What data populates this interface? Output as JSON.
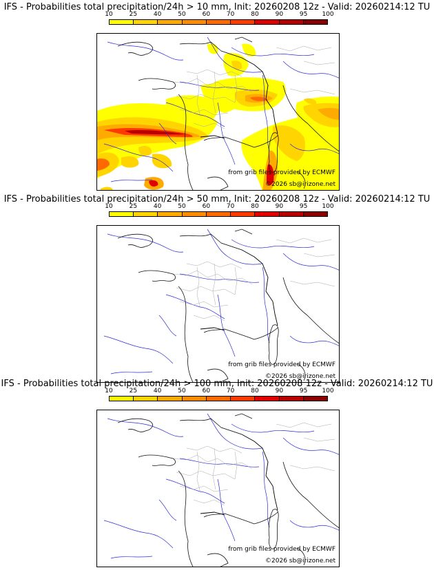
{
  "panels": [
    {
      "title": "IFS - Probabilities total precipitation/24h > 10 mm, Init: 20260208 12z - Valid: 20260214:12 TU",
      "credit_source": "from grib files provided by ECMWF",
      "credit_copyright": "©2026 sb@irizone.net",
      "has_precip": true
    },
    {
      "title": "IFS - Probabilities total precipitation/24h > 50 mm, Init: 20260208 12z - Valid: 20260214:12 TU",
      "credit_source": "from grib files provided by ECMWF",
      "credit_copyright": "©2026 sb@irizone.net",
      "has_precip": false
    },
    {
      "title": "IFS - Probabilities total precipitation/24h > 100 mm, Init: 20260208 12z - Valid: 20260214:12 TU",
      "credit_source": "from grib files provided by ECMWF",
      "credit_copyright": "©2026 sb@irizone.net",
      "has_precip": false
    }
  ],
  "colorbar": {
    "ticks": [
      "10",
      "25",
      "40",
      "50",
      "60",
      "70",
      "80",
      "90",
      "95",
      "100"
    ],
    "colors": [
      "#ffff00",
      "#ffd400",
      "#ffaa00",
      "#ff8c00",
      "#ff6a00",
      "#ff3a00",
      "#e00000",
      "#b80000",
      "#8a0000"
    ]
  }
}
